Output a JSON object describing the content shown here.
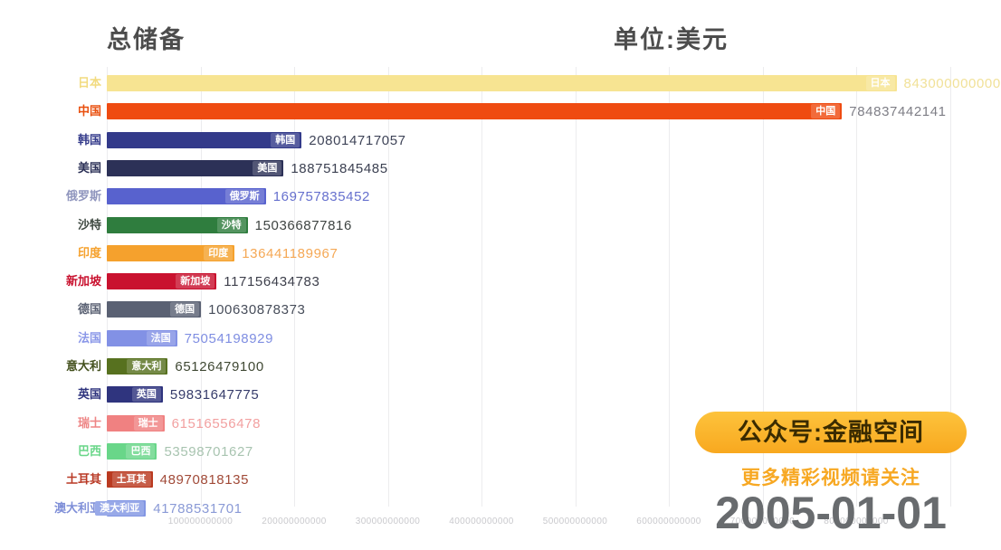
{
  "header": {
    "title": "总储备",
    "unit_label": "单位:美元"
  },
  "watermark": {
    "badge": "公众号:金融空间",
    "subtitle": "更多精彩视频请关注",
    "date": "2005-01-01"
  },
  "chart_data": {
    "type": "bar",
    "orientation": "horizontal",
    "title": "总储备",
    "unit": "美元 (USD)",
    "date": "2005-01-01",
    "grid": true,
    "xlim": [
      0,
      930000000000
    ],
    "x_ticks": [
      100000000000,
      200000000000,
      300000000000,
      400000000000,
      500000000000,
      600000000000,
      700000000000,
      800000000000
    ],
    "series": [
      {
        "name": "日本",
        "value": 843000000000,
        "bar_color": "#f7e492",
        "label_color": "#f2db80",
        "value_color": "#f1e198"
      },
      {
        "name": "中国",
        "value": 784837442141,
        "bar_color": "#ef4b11",
        "label_color": "#e9500f",
        "value_color": "#7e7e86"
      },
      {
        "name": "韩国",
        "value": 208014717057,
        "bar_color": "#333a8a",
        "label_color": "#333a8a",
        "value_color": "#3f4458"
      },
      {
        "name": "美国",
        "value": 188751845485,
        "bar_color": "#2c3157",
        "label_color": "#2c3157",
        "value_color": "#3c4152"
      },
      {
        "name": "俄罗斯",
        "value": 169757835452,
        "bar_color": "#5862ce",
        "label_color": "#9096be",
        "value_color": "#6670ce"
      },
      {
        "name": "沙特",
        "value": 150366877816,
        "bar_color": "#2f7d3e",
        "label_color": "#3f4a42",
        "value_color": "#3e4442"
      },
      {
        "name": "印度",
        "value": 136441189967,
        "bar_color": "#f5a12d",
        "label_color": "#f5a12d",
        "value_color": "#f5a855"
      },
      {
        "name": "新加坡",
        "value": 117156434783,
        "bar_color": "#c9122f",
        "label_color": "#c9122f",
        "value_color": "#3e404c"
      },
      {
        "name": "德国",
        "value": 100630878373,
        "bar_color": "#5a6173",
        "label_color": "#5a6173",
        "value_color": "#474d5a"
      },
      {
        "name": "法国",
        "value": 75054198929,
        "bar_color": "#8291e5",
        "label_color": "#8a97e8",
        "value_color": "#7f8ee2"
      },
      {
        "name": "意大利",
        "value": 65126479100,
        "bar_color": "#57711f",
        "label_color": "#44511e",
        "value_color": "#3f4833"
      },
      {
        "name": "英国",
        "value": 59831647775,
        "bar_color": "#2f347e",
        "label_color": "#2f347e",
        "value_color": "#363c6b"
      },
      {
        "name": "瑞士",
        "value": 61516556478,
        "bar_color": "#f08181",
        "label_color": "#ee8585",
        "value_color": "#f2a0a0"
      },
      {
        "name": "巴西",
        "value": 53598701627,
        "bar_color": "#69d689",
        "label_color": "#69d689",
        "value_color": "#a8c4b0"
      },
      {
        "name": "土耳其",
        "value": 48970818135,
        "bar_color": "#ba3a20",
        "label_color": "#b93a26",
        "value_color": "#a14a38"
      },
      {
        "name": "澳大利亚",
        "value": 41788531701,
        "bar_color": "#8296e3",
        "label_color": "#7f8fd8",
        "value_color": "#8a9ad6"
      }
    ]
  }
}
